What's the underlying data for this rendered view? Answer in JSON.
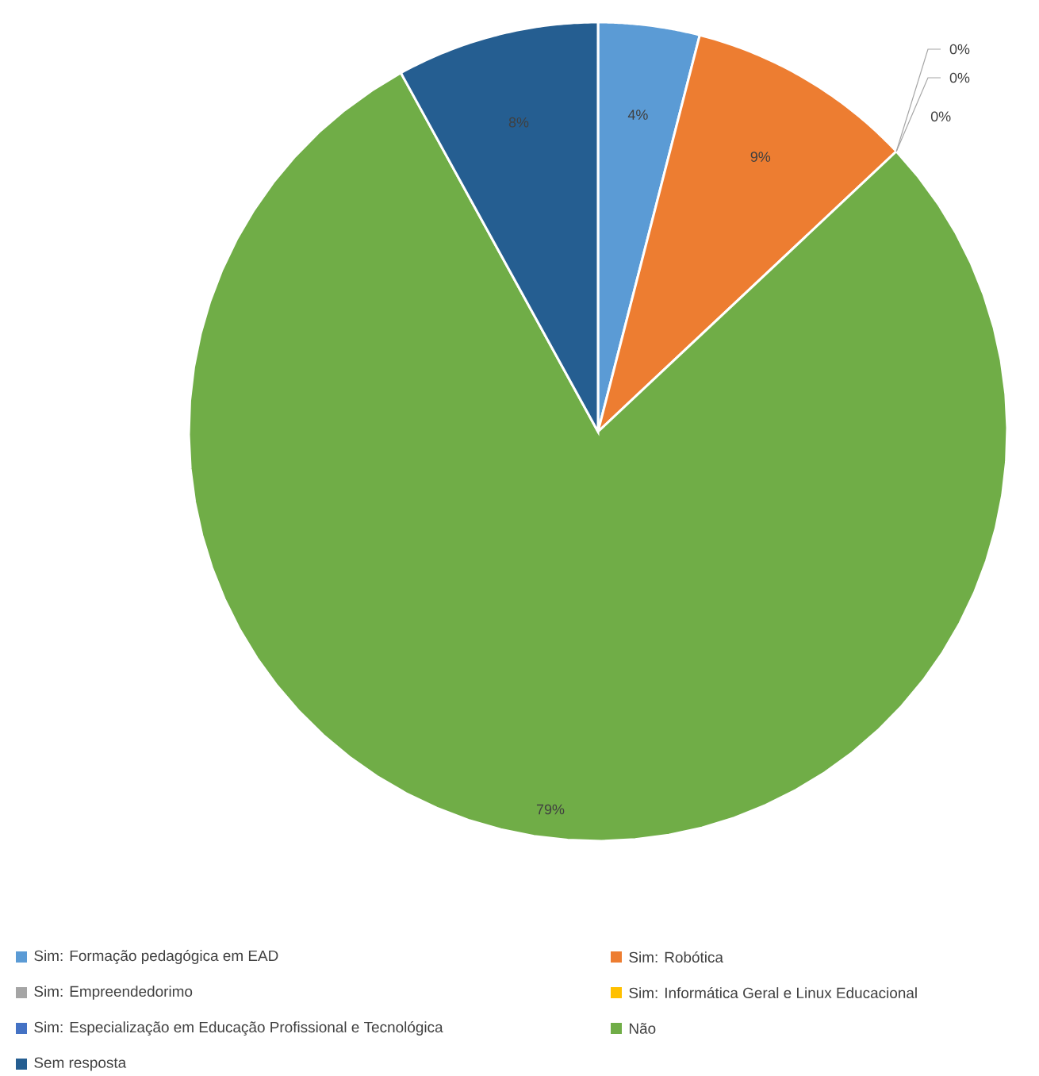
{
  "chart_data": {
    "type": "pie",
    "categories": [
      "Sim: Formação pedagógica em EAD",
      "Sim: Robótica",
      "Sim: Empreendedorimo",
      "Sim: Informática Geral e Linux Educacional",
      "Sim: Especialização em Educação Profissional e Tecnológica",
      "Não",
      "Sem resposta"
    ],
    "values": [
      4,
      9,
      0,
      0,
      0,
      79,
      8
    ],
    "colors": [
      "#5b9bd5",
      "#ed7d31",
      "#a5a5a5",
      "#ffc000",
      "#4472c4",
      "#70ad47",
      "#255e91"
    ],
    "value_labels": [
      "4%",
      "9%",
      "0%",
      "0%",
      "0%",
      "79%",
      "8%"
    ],
    "legend": "bottom"
  }
}
